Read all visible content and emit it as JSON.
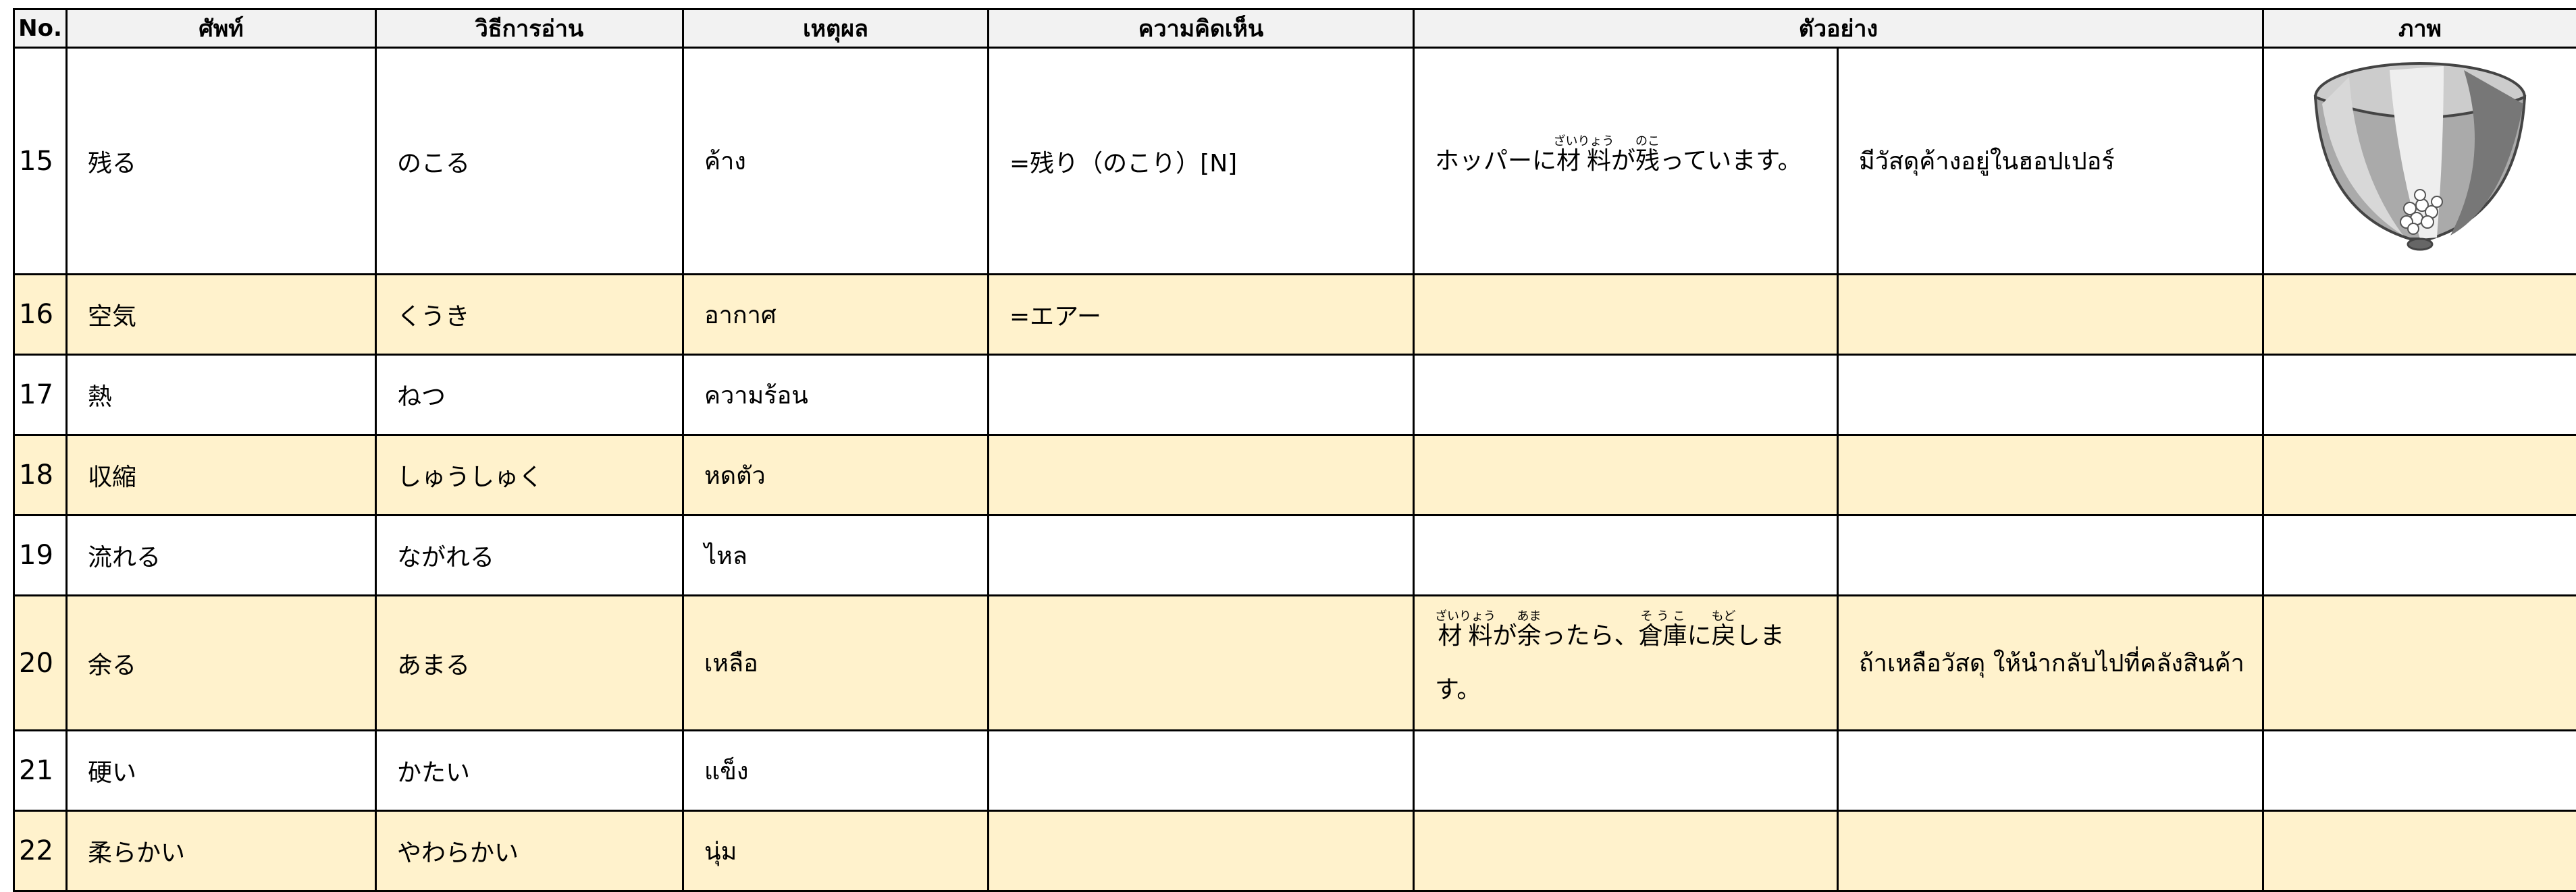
{
  "table": {
    "headers": [
      "No.",
      "ศัพท์",
      "วิธีการอ่าน",
      "เหตุผล",
      "ความคิดเห็น",
      "ตัวอย่าง",
      "ภาพ"
    ],
    "rows": [
      {
        "no": "15",
        "word": "残る",
        "reading": "のこる",
        "meaning": "ค้าง",
        "comment": "=残り（のこり）[N]",
        "example_ja": [
          {
            "text": "ホッパーに"
          },
          {
            "text": "材料",
            "ruby": "ざいりょう"
          },
          {
            "text": "が"
          },
          {
            "text": "残",
            "ruby": "のこ"
          },
          {
            "text": "っています。"
          }
        ],
        "example_th": "มีวัสดุค้างอยู่ในฮอปเปอร์"
      },
      {
        "no": "16",
        "word": "空気",
        "reading": "くうき",
        "meaning": "อากาศ",
        "comment": "=エアー"
      },
      {
        "no": "17",
        "word": "熱",
        "reading": "ねつ",
        "meaning": "ความร้อน"
      },
      {
        "no": "18",
        "word": "収縮",
        "reading": "しゅうしゅく",
        "meaning": "หดตัว"
      },
      {
        "no": "19",
        "word": "流れる",
        "reading": "ながれる",
        "meaning": "ไหล"
      },
      {
        "no": "20",
        "word": "余る",
        "reading": "あまる",
        "meaning": "เหลือ",
        "example_ja": [
          {
            "text": "材料",
            "ruby": "ざいりょう"
          },
          {
            "text": "が"
          },
          {
            "text": "余",
            "ruby": "あま"
          },
          {
            "text": "ったら、"
          },
          {
            "text": "倉庫",
            "ruby": "そうこ"
          },
          {
            "text": "に"
          },
          {
            "text": "戻",
            "ruby": "もど"
          },
          {
            "text": "します。"
          }
        ],
        "example_th": "ถ้าเหลือวัสดุ ให้นำกลับไปที่คลังสินค้า"
      },
      {
        "no": "21",
        "word": "硬い",
        "reading": "かたい",
        "meaning": "แข็ง"
      },
      {
        "no": "22",
        "word": "柔らかい",
        "reading": "やわらかい",
        "meaning": "นุ่ม"
      }
    ]
  }
}
